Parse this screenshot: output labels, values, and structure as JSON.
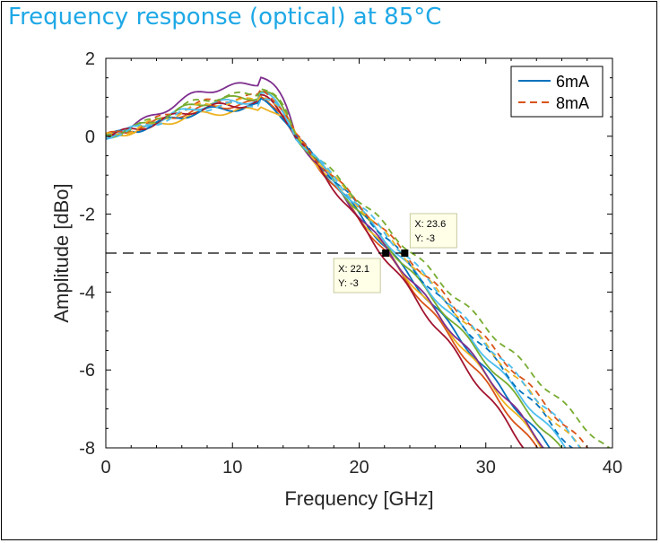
{
  "title": "Frequency response (optical) at 85°C",
  "chart_data": {
    "type": "line",
    "xlabel": "Frequency [GHz]",
    "ylabel": "Amplitude [dBo]",
    "xlim": [
      0,
      40
    ],
    "ylim": [
      -8,
      2
    ],
    "xticks": [
      "0",
      "10",
      "20",
      "30",
      "40"
    ],
    "yticks": [
      "2",
      "0",
      "-2",
      "-4",
      "-6",
      "-8"
    ],
    "grid": false,
    "legend_position": "top-right",
    "reference_line": {
      "y": -3
    },
    "legend": [
      {
        "name": "6mA",
        "style": "solid",
        "color": "#0072bd"
      },
      {
        "name": "8mA",
        "style": "dashed",
        "color": "#d95319"
      }
    ],
    "datatips": [
      {
        "x": 22.1,
        "y": -3,
        "label_x": "X: 22.1",
        "label_y": "Y: -3"
      },
      {
        "x": 23.6,
        "y": -3,
        "label_x": "X: 23.6",
        "label_y": "Y: -3"
      }
    ],
    "series": [
      {
        "color": "#0072bd",
        "style": "solid",
        "peak": 0.9,
        "f3db": 22.5
      },
      {
        "color": "#d95319",
        "style": "solid",
        "peak": 1.0,
        "f3db": 22.1
      },
      {
        "color": "#edb120",
        "style": "solid",
        "peak": 0.8,
        "f3db": 22.3
      },
      {
        "color": "#7e2f8e",
        "style": "solid",
        "peak": 1.6,
        "f3db": 22.4
      },
      {
        "color": "#77ac30",
        "style": "solid",
        "peak": 1.2,
        "f3db": 22.8
      },
      {
        "color": "#4dbeee",
        "style": "solid",
        "peak": 1.1,
        "f3db": 23.0
      },
      {
        "color": "#a2142f",
        "style": "solid",
        "peak": 1.0,
        "f3db": 21.8
      },
      {
        "color": "#0072bd",
        "style": "dashed",
        "peak": 0.9,
        "f3db": 23.2
      },
      {
        "color": "#d95319",
        "style": "dashed",
        "peak": 1.2,
        "f3db": 23.6
      },
      {
        "color": "#edb120",
        "style": "dashed",
        "peak": 1.1,
        "f3db": 23.4
      },
      {
        "color": "#77ac30",
        "style": "dashed",
        "peak": 1.3,
        "f3db": 24.2
      },
      {
        "color": "#4dbeee",
        "style": "dashed",
        "peak": 1.0,
        "f3db": 23.5
      }
    ]
  }
}
